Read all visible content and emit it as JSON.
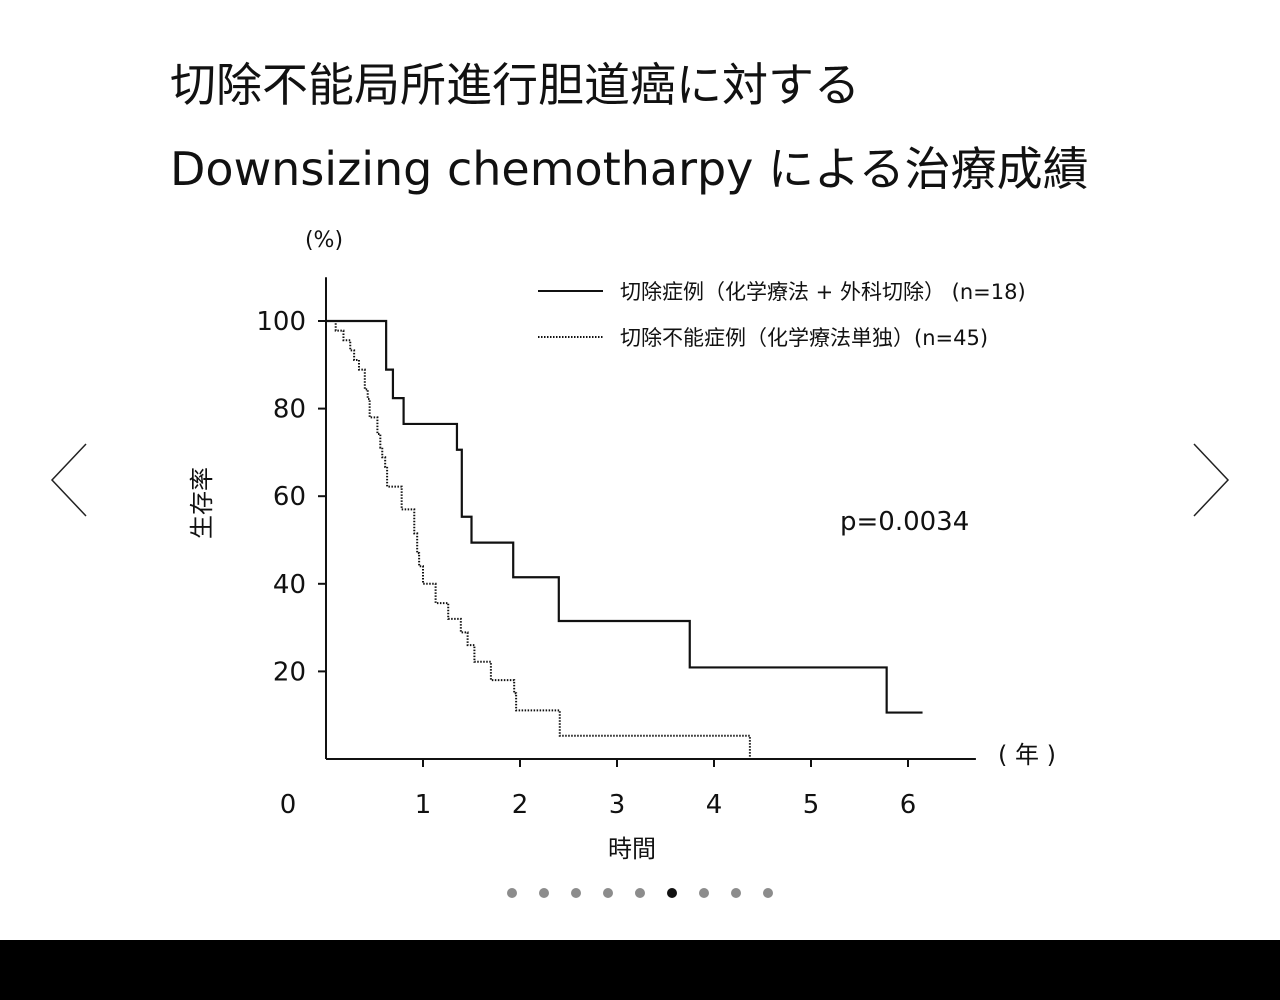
{
  "slide": {
    "title_line1": "切除不能局所進行胆道癌に対する",
    "title_line2": "Downsizing chemotharpy による治療成績"
  },
  "chart_data": {
    "type": "line",
    "step": true,
    "xlabel": "時間",
    "xunit": "( 年 )",
    "ylabel": "生存率",
    "yunit": "(%)",
    "origin_label": "0",
    "xlim": [
      0,
      6.7
    ],
    "ylim": [
      0,
      110
    ],
    "xticks": [
      1,
      2,
      3,
      4,
      5,
      6
    ],
    "yticks": [
      20,
      40,
      60,
      80,
      100
    ],
    "legend_position": "top-right",
    "annotation": "p=0.0034",
    "series": [
      {
        "name": "切除症例（化学療法 + 外科切除） (n=18)",
        "style": "solid",
        "x": [
          0,
          0.62,
          0.69,
          0.8,
          1.35,
          1.4,
          1.5,
          1.93,
          2.4,
          3.75,
          5.78,
          6.15
        ],
        "y": [
          100,
          88.9,
          82.4,
          76.5,
          70.6,
          55.3,
          49.4,
          41.5,
          31.5,
          20.9,
          10.6,
          10.6
        ]
      },
      {
        "name": "切除不能症例（化学療法単独）(n=45)",
        "style": "dotted",
        "x": [
          0,
          0.1,
          0.18,
          0.25,
          0.29,
          0.34,
          0.4,
          0.43,
          0.45,
          0.53,
          0.56,
          0.58,
          0.61,
          0.63,
          0.78,
          0.91,
          0.94,
          0.96,
          1.0,
          1.13,
          1.26,
          1.39,
          1.46,
          1.53,
          1.7,
          1.94,
          1.96,
          2.41,
          4.37
        ],
        "y": [
          100,
          97.8,
          95.6,
          93.3,
          91.1,
          88.9,
          84.4,
          82.2,
          78.0,
          74.2,
          71.1,
          68.9,
          66.7,
          62.2,
          57.0,
          51.5,
          47.0,
          44.0,
          40.0,
          35.6,
          32.0,
          28.9,
          26.0,
          22.2,
          18.0,
          15.0,
          11.1,
          5.3,
          0
        ]
      }
    ]
  },
  "navigation": {
    "prev_icon": "chevron-left-icon",
    "next_icon": "chevron-right-icon",
    "dot_count": 9,
    "active_dot": 6
  }
}
